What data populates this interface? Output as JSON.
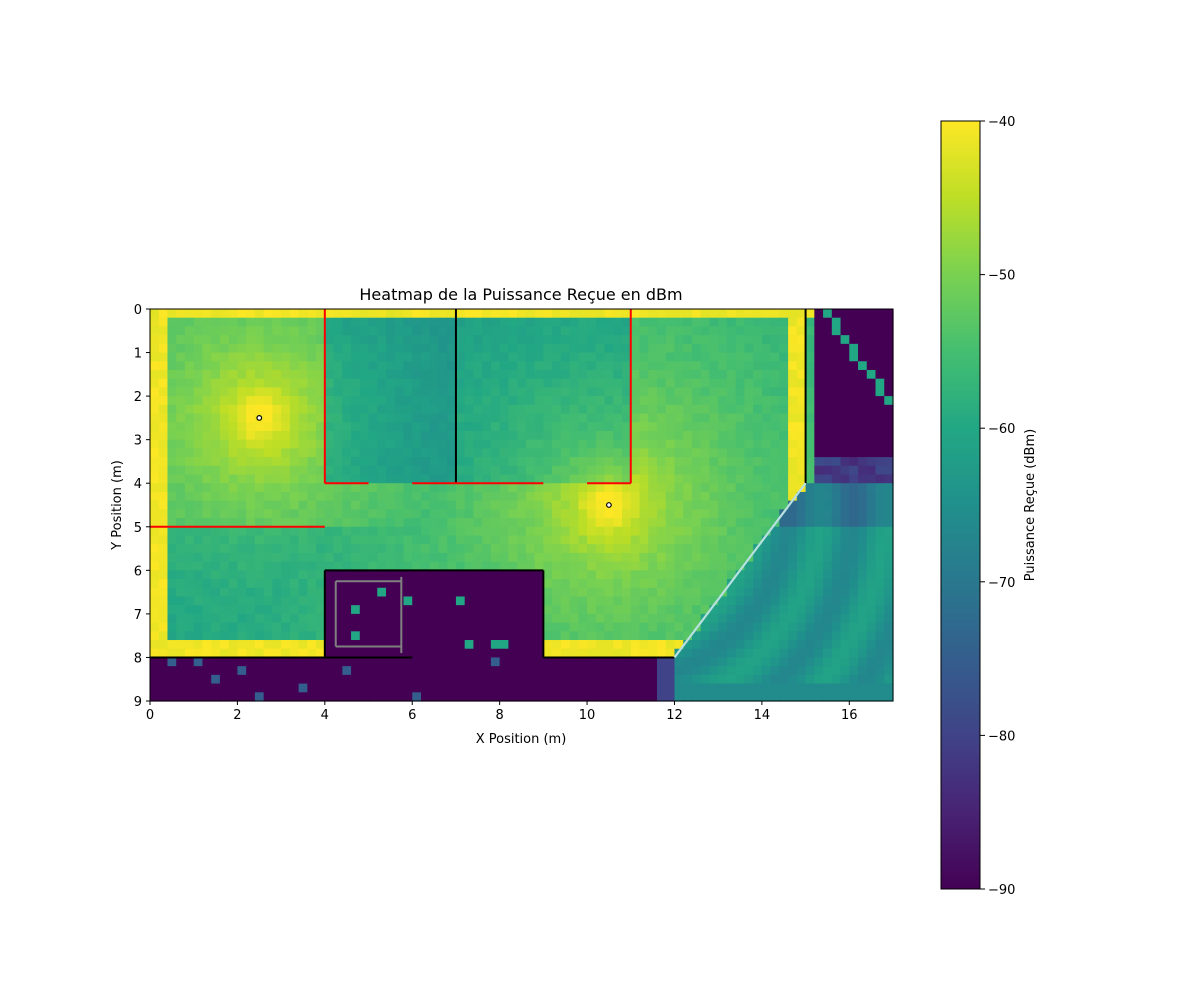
{
  "chart_data": {
    "type": "heatmap",
    "title": "Heatmap de la Puissance Reçue en dBm",
    "xlabel": "X Position (m)",
    "ylabel": "Y Position (m)",
    "xlim": [
      0,
      17
    ],
    "ylim": [
      9,
      0
    ],
    "y_axis_inverted": true,
    "resolution_m": 0.2,
    "x_ticks": [
      0,
      2,
      4,
      6,
      8,
      10,
      12,
      14,
      16
    ],
    "y_ticks": [
      0,
      1,
      2,
      3,
      4,
      5,
      6,
      7,
      8,
      9
    ],
    "colorbar": {
      "label": "Puissance Reçue (dBm)",
      "min": -90,
      "max": -40,
      "ticks": [
        -40,
        -50,
        -60,
        -70,
        -80,
        -90
      ],
      "tick_labels": [
        "−40",
        "−50",
        "−60",
        "−70",
        "−80",
        "−90"
      ],
      "colormap": "viridis"
    },
    "transmitters": [
      {
        "x": 2.5,
        "y": 2.5,
        "peak_dbm": -40
      },
      {
        "x": 10.5,
        "y": 4.5,
        "peak_dbm": -40
      }
    ],
    "walls": [
      {
        "type": "black",
        "color": "#000000",
        "x1": 7,
        "y1": 0,
        "x2": 7,
        "y2": 4
      },
      {
        "type": "black",
        "color": "#000000",
        "x1": 15,
        "y1": 0,
        "x2": 15,
        "y2": 4
      },
      {
        "type": "black",
        "color": "#000000",
        "x1": 4,
        "y1": 6,
        "x2": 9,
        "y2": 6
      },
      {
        "type": "black",
        "color": "#000000",
        "x1": 4,
        "y1": 6,
        "x2": 4,
        "y2": 8
      },
      {
        "type": "black",
        "color": "#000000",
        "x1": 9,
        "y1": 6,
        "x2": 9,
        "y2": 8
      },
      {
        "type": "black",
        "color": "#000000",
        "x1": 0,
        "y1": 8,
        "x2": 6,
        "y2": 8
      },
      {
        "type": "black",
        "color": "#000000",
        "x1": 9,
        "y1": 8,
        "x2": 12,
        "y2": 8
      },
      {
        "type": "red",
        "color": "#ff0000",
        "x1": 4,
        "y1": 0,
        "x2": 4,
        "y2": 4
      },
      {
        "type": "red",
        "color": "#ff0000",
        "x1": 4,
        "y1": 4,
        "x2": 5,
        "y2": 4
      },
      {
        "type": "red",
        "color": "#ff0000",
        "x1": 6,
        "y1": 4,
        "x2": 9,
        "y2": 4
      },
      {
        "type": "red",
        "color": "#ff0000",
        "x1": 11,
        "y1": 0,
        "x2": 11,
        "y2": 4
      },
      {
        "type": "red",
        "color": "#ff0000",
        "x1": 10,
        "y1": 4,
        "x2": 11,
        "y2": 4
      },
      {
        "type": "red",
        "color": "#ff0000",
        "x1": 0,
        "y1": 5,
        "x2": 4,
        "y2": 5
      },
      {
        "type": "glass",
        "color": "#b8e0e0",
        "x1": 12,
        "y1": 8,
        "x2": 15,
        "y2": 4
      },
      {
        "type": "gray",
        "color": "#808080",
        "x1": 4.25,
        "y1": 6.25,
        "x2": 5.75,
        "y2": 6.25
      },
      {
        "type": "gray",
        "color": "#808080",
        "x1": 4.25,
        "y1": 7.75,
        "x2": 5.75,
        "y2": 7.75
      },
      {
        "type": "gray",
        "color": "#808080",
        "x1": 4.25,
        "y1": 6.25,
        "x2": 4.25,
        "y2": 7.75
      },
      {
        "type": "gray",
        "color": "#808080",
        "x1": 5.75,
        "y1": 6.15,
        "x2": 5.75,
        "y2": 7.9
      }
    ]
  }
}
